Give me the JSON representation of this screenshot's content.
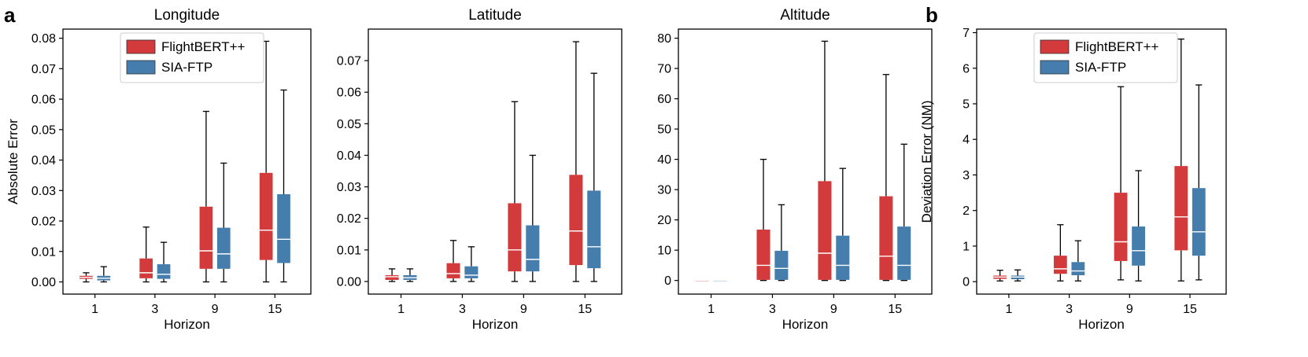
{
  "panel_letters": [
    "a",
    "b"
  ],
  "colors": {
    "FlightBERT++": "#d23a3c",
    "SIA-FTP": "#457ead"
  },
  "chart_data": [
    {
      "type": "boxplot",
      "panel": "a",
      "title": "Longitude",
      "xlabel": "Horizon",
      "ylabel": "Absolute Error",
      "categories": [
        "1",
        "3",
        "9",
        "15"
      ],
      "ylim": [
        -0.004,
        0.083
      ],
      "yticks": [
        0,
        0.01,
        0.02,
        0.03,
        0.04,
        0.05,
        0.06,
        0.07,
        0.08
      ],
      "ytick_labels": [
        "0.00",
        "0.01",
        "0.02",
        "0.03",
        "0.04",
        "0.05",
        "0.06",
        "0.07",
        "0.08"
      ],
      "legend": [
        "FlightBERT++",
        "SIA-FTP"
      ],
      "legend_position": "upper-center",
      "series": [
        {
          "name": "FlightBERT++",
          "boxes": [
            {
              "whislo": 0,
              "q1": 0.001,
              "med": 0.0015,
              "q3": 0.002,
              "whishi": 0.003
            },
            {
              "whislo": 0,
              "q1": 0.0012,
              "med": 0.003,
              "q3": 0.0077,
              "whishi": 0.018
            },
            {
              "whislo": 0,
              "q1": 0.0043,
              "med": 0.0102,
              "q3": 0.0247,
              "whishi": 0.056
            },
            {
              "whislo": 0,
              "q1": 0.0072,
              "med": 0.017,
              "q3": 0.0358,
              "whishi": 0.079
            }
          ]
        },
        {
          "name": "SIA-FTP",
          "boxes": [
            {
              "whislo": 0,
              "q1": 0.0005,
              "med": 0.0012,
              "q3": 0.002,
              "whishi": 0.005
            },
            {
              "whislo": 0,
              "q1": 0.001,
              "med": 0.0025,
              "q3": 0.0058,
              "whishi": 0.013
            },
            {
              "whislo": 0,
              "q1": 0.0043,
              "med": 0.0092,
              "q3": 0.0178,
              "whishi": 0.039
            },
            {
              "whislo": 0,
              "q1": 0.0062,
              "med": 0.014,
              "q3": 0.0288,
              "whishi": 0.063
            }
          ]
        }
      ]
    },
    {
      "type": "boxplot",
      "panel": "a",
      "title": "Latitude",
      "xlabel": "Horizon",
      "ylabel": "",
      "categories": [
        "1",
        "3",
        "9",
        "15"
      ],
      "ylim": [
        -0.004,
        0.08
      ],
      "yticks": [
        0,
        0.01,
        0.02,
        0.03,
        0.04,
        0.05,
        0.06,
        0.07
      ],
      "ytick_labels": [
        "0.00",
        "0.01",
        "0.02",
        "0.03",
        "0.04",
        "0.05",
        "0.06",
        "0.07"
      ],
      "legend": [],
      "series": [
        {
          "name": "FlightBERT++",
          "boxes": [
            {
              "whislo": 0,
              "q1": 0.0005,
              "med": 0.0015,
              "q3": 0.002,
              "whishi": 0.004
            },
            {
              "whislo": 0,
              "q1": 0.001,
              "med": 0.0025,
              "q3": 0.0058,
              "whishi": 0.013
            },
            {
              "whislo": 0,
              "q1": 0.0032,
              "med": 0.01,
              "q3": 0.0248,
              "whishi": 0.057
            },
            {
              "whislo": 0,
              "q1": 0.0052,
              "med": 0.016,
              "q3": 0.0338,
              "whishi": 0.076
            }
          ]
        },
        {
          "name": "SIA-FTP",
          "boxes": [
            {
              "whislo": 0,
              "q1": 0.0005,
              "med": 0.0012,
              "q3": 0.002,
              "whishi": 0.004
            },
            {
              "whislo": 0,
              "q1": 0.001,
              "med": 0.002,
              "q3": 0.0048,
              "whishi": 0.011
            },
            {
              "whislo": 0,
              "q1": 0.0032,
              "med": 0.007,
              "q3": 0.0178,
              "whishi": 0.04
            },
            {
              "whislo": 0,
              "q1": 0.0042,
              "med": 0.011,
              "q3": 0.0288,
              "whishi": 0.066
            }
          ]
        }
      ]
    },
    {
      "type": "boxplot",
      "panel": "a",
      "title": "Altitude",
      "xlabel": "Horizon",
      "ylabel": "",
      "categories": [
        "1",
        "3",
        "9",
        "15"
      ],
      "ylim": [
        -4.5,
        83
      ],
      "yticks": [
        0,
        10,
        20,
        30,
        40,
        50,
        60,
        70,
        80
      ],
      "ytick_labels": [
        "0",
        "10",
        "20",
        "30",
        "40",
        "50",
        "60",
        "70",
        "80"
      ],
      "legend": [],
      "series": [
        {
          "name": "FlightBERT++",
          "boxes": [
            {
              "whislo": 0,
              "q1": 0,
              "med": 0,
              "q3": 0,
              "whishi": 0
            },
            {
              "whislo": 0,
              "q1": 0.2,
              "med": 5,
              "q3": 16.8,
              "whishi": 40
            },
            {
              "whislo": 0,
              "q1": 0.2,
              "med": 9,
              "q3": 32.8,
              "whishi": 79
            },
            {
              "whislo": 0,
              "q1": 0.2,
              "med": 8,
              "q3": 27.8,
              "whishi": 68
            }
          ]
        },
        {
          "name": "SIA-FTP",
          "boxes": [
            {
              "whislo": 0,
              "q1": 0,
              "med": 0,
              "q3": 0,
              "whishi": 0
            },
            {
              "whislo": 0,
              "q1": 0.2,
              "med": 4,
              "q3": 9.8,
              "whishi": 25
            },
            {
              "whislo": 0,
              "q1": 0.2,
              "med": 5,
              "q3": 14.8,
              "whishi": 37
            },
            {
              "whislo": 0,
              "q1": 0.2,
              "med": 5,
              "q3": 17.8,
              "whishi": 45
            }
          ]
        }
      ]
    },
    {
      "type": "boxplot",
      "panel": "b",
      "title": "",
      "xlabel": "Horizon",
      "ylabel": "Deviation Error (NM)",
      "categories": [
        "1",
        "3",
        "9",
        "15"
      ],
      "ylim": [
        -0.35,
        7.1
      ],
      "yticks": [
        0,
        1,
        2,
        3,
        4,
        5,
        6,
        7
      ],
      "ytick_labels": [
        "0",
        "1",
        "2",
        "3",
        "4",
        "5",
        "6",
        "7"
      ],
      "legend": [
        "FlightBERT++",
        "SIA-FTP"
      ],
      "legend_position": "upper-center",
      "series": [
        {
          "name": "FlightBERT++",
          "boxes": [
            {
              "whislo": 0.02,
              "q1": 0.08,
              "med": 0.13,
              "q3": 0.17,
              "whishi": 0.32
            },
            {
              "whislo": 0.02,
              "q1": 0.22,
              "med": 0.36,
              "q3": 0.73,
              "whishi": 1.6
            },
            {
              "whislo": 0.05,
              "q1": 0.58,
              "med": 1.12,
              "q3": 2.5,
              "whishi": 5.48
            },
            {
              "whislo": 0.02,
              "q1": 0.88,
              "med": 1.82,
              "q3": 3.25,
              "whishi": 6.82
            }
          ]
        },
        {
          "name": "SIA-FTP",
          "boxes": [
            {
              "whislo": 0.02,
              "q1": 0.07,
              "med": 0.13,
              "q3": 0.17,
              "whishi": 0.33
            },
            {
              "whislo": 0.02,
              "q1": 0.18,
              "med": 0.3,
              "q3": 0.55,
              "whishi": 1.15
            },
            {
              "whislo": 0.02,
              "q1": 0.45,
              "med": 0.87,
              "q3": 1.55,
              "whishi": 3.12
            },
            {
              "whislo": 0.05,
              "q1": 0.73,
              "med": 1.4,
              "q3": 2.63,
              "whishi": 5.53
            }
          ]
        }
      ]
    }
  ]
}
